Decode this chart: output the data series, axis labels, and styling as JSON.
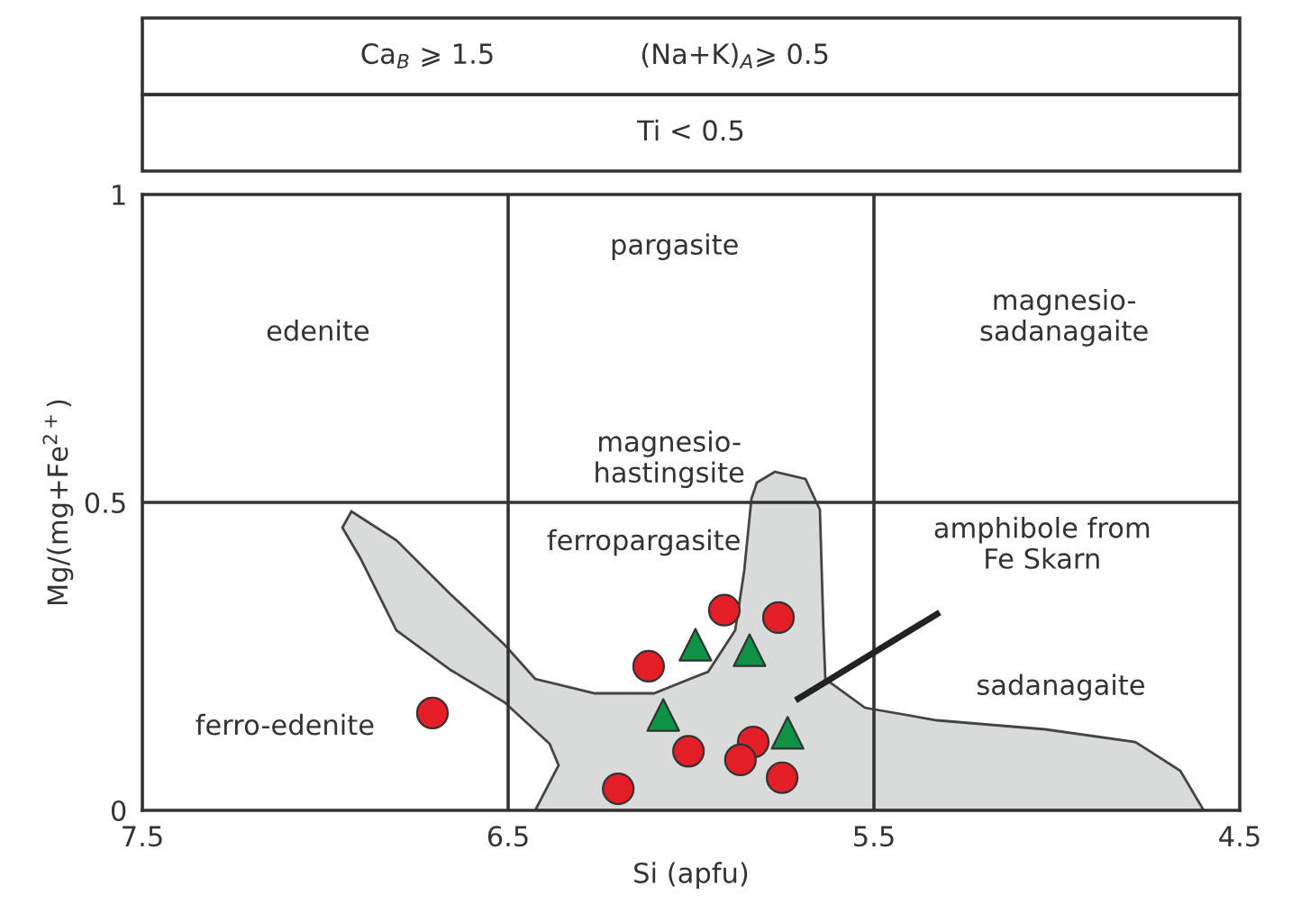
{
  "chart_data": {
    "type": "scatter",
    "xlabel": "Si (apfu)",
    "ylabel": "Mg/(mg+Fe$^{2+}$)",
    "xlim": [
      7.5,
      4.5
    ],
    "ylim": [
      0,
      1
    ],
    "xticks": [
      7.5,
      6.5,
      5.5,
      4.5
    ],
    "yticks": [
      0,
      0.5,
      1
    ],
    "grid": false,
    "legend": false,
    "series": [
      {
        "color": "#e41e26",
        "marker": "circle",
        "x": [
          6.707,
          6.199,
          5.909,
          5.761,
          6.116,
          6.007,
          5.83,
          5.865,
          5.751
        ],
        "values": [
          0.158,
          0.035,
          0.325,
          0.313,
          0.234,
          0.096,
          0.111,
          0.082,
          0.053
        ]
      },
      {
        "color": "#0e9346",
        "marker": "triangle",
        "x": [
          5.988,
          5.84,
          6.076,
          5.736
        ],
        "values": [
          0.269,
          0.26,
          0.155,
          0.126
        ]
      }
    ],
    "ref_lines": [
      {
        "axis": "x",
        "value": 6.5,
        "color": "#333333"
      },
      {
        "axis": "x",
        "value": 5.5,
        "color": "#333333"
      },
      {
        "axis": "y",
        "value": 0.5,
        "color": "#333333"
      }
    ],
    "annotations": [
      "Ca$_{B}$ ⩾ 1.5",
      "(Na+K)$_{A}$⩾ 0.5",
      "Ti < 0.5",
      "edenite",
      "pargasite",
      "magnesio-\nsadanagaite",
      "magnesio-\nhastingsite",
      "ferropargasite",
      "ferro-edenite",
      "sadanagaite",
      "amphibole from\nFe Skarn"
    ]
  }
}
